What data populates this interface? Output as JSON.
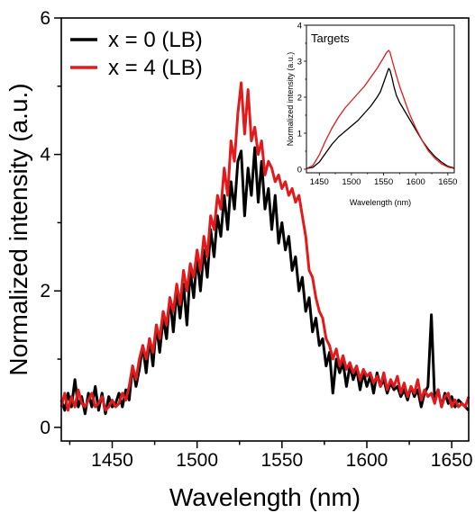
{
  "chart_data": [
    {
      "type": "line",
      "title": "",
      "xlabel": "Wavelength (nm)",
      "ylabel": "Normalized intensity (a.u.)",
      "xlim": [
        1420,
        1660
      ],
      "ylim": [
        -0.2,
        6.0
      ],
      "x_ticks": [
        1450,
        1500,
        1550,
        1600,
        1650
      ],
      "y_ticks": [
        0,
        2,
        4,
        6
      ],
      "grid": false,
      "legend_position": "top-left",
      "series": [
        {
          "name": "x = 0 (LB)",
          "color": "#000000",
          "x": [
            1420,
            1422,
            1424,
            1426,
            1428,
            1430,
            1432,
            1434,
            1436,
            1438,
            1440,
            1442,
            1444,
            1446,
            1448,
            1450,
            1452,
            1454,
            1456,
            1458,
            1460,
            1462,
            1464,
            1466,
            1468,
            1470,
            1472,
            1474,
            1476,
            1478,
            1480,
            1482,
            1484,
            1486,
            1488,
            1490,
            1492,
            1494,
            1496,
            1498,
            1500,
            1502,
            1504,
            1506,
            1508,
            1510,
            1512,
            1514,
            1516,
            1518,
            1520,
            1522,
            1524,
            1526,
            1528,
            1530,
            1532,
            1534,
            1536,
            1538,
            1540,
            1542,
            1544,
            1546,
            1548,
            1550,
            1552,
            1554,
            1556,
            1558,
            1560,
            1562,
            1564,
            1566,
            1568,
            1570,
            1572,
            1574,
            1576,
            1578,
            1580,
            1582,
            1584,
            1586,
            1588,
            1590,
            1592,
            1594,
            1596,
            1598,
            1600,
            1602,
            1604,
            1606,
            1608,
            1610,
            1612,
            1614,
            1616,
            1618,
            1620,
            1622,
            1624,
            1626,
            1628,
            1630,
            1632,
            1634,
            1636,
            1638,
            1640,
            1642,
            1644,
            1646,
            1648,
            1650,
            1652,
            1654,
            1656,
            1658,
            1660
          ],
          "y": [
            0.4,
            0.25,
            0.5,
            0.3,
            0.7,
            0.3,
            0.45,
            0.2,
            0.5,
            0.3,
            0.6,
            0.25,
            0.5,
            0.2,
            0.45,
            0.3,
            0.35,
            0.5,
            0.3,
            0.55,
            0.4,
            0.9,
            0.6,
            0.85,
            1.2,
            0.8,
            1.3,
            0.9,
            1.5,
            1.1,
            1.6,
            1.3,
            1.9,
            1.4,
            2.0,
            1.6,
            2.1,
            1.5,
            2.3,
            1.9,
            2.5,
            2.0,
            2.6,
            2.2,
            2.9,
            2.5,
            3.1,
            2.8,
            3.4,
            2.9,
            3.6,
            3.2,
            3.9,
            4.05,
            3.1,
            3.8,
            3.4,
            4.1,
            3.3,
            3.9,
            3.2,
            3.5,
            2.9,
            3.4,
            2.7,
            3.0,
            2.6,
            2.8,
            2.3,
            2.5,
            2.0,
            2.2,
            1.7,
            1.9,
            1.4,
            1.6,
            1.2,
            1.3,
            0.9,
            1.1,
            0.5,
            1.0,
            0.8,
            0.95,
            0.6,
            0.9,
            0.7,
            0.85,
            0.55,
            0.8,
            0.6,
            0.75,
            0.5,
            0.8,
            0.6,
            0.7,
            0.5,
            0.65,
            0.55,
            0.6,
            0.45,
            0.55,
            0.4,
            0.6,
            0.45,
            0.55,
            0.3,
            0.5,
            0.6,
            1.65,
            0.4,
            0.55,
            0.3,
            0.5,
            0.35,
            0.45,
            0.3,
            0.4,
            0.35,
            0.3,
            0.25
          ]
        },
        {
          "name": "x = 4 (LB)",
          "color": "#e31a1c",
          "x": [
            1420,
            1422,
            1424,
            1426,
            1428,
            1430,
            1432,
            1434,
            1436,
            1438,
            1440,
            1442,
            1444,
            1446,
            1448,
            1450,
            1452,
            1454,
            1456,
            1458,
            1460,
            1462,
            1464,
            1466,
            1468,
            1470,
            1472,
            1474,
            1476,
            1478,
            1480,
            1482,
            1484,
            1486,
            1488,
            1490,
            1492,
            1494,
            1496,
            1498,
            1500,
            1502,
            1504,
            1506,
            1508,
            1510,
            1512,
            1514,
            1516,
            1518,
            1520,
            1522,
            1524,
            1526,
            1528,
            1530,
            1532,
            1534,
            1536,
            1538,
            1540,
            1542,
            1544,
            1546,
            1548,
            1550,
            1552,
            1554,
            1556,
            1558,
            1560,
            1562,
            1564,
            1566,
            1568,
            1570,
            1572,
            1574,
            1576,
            1578,
            1580,
            1582,
            1584,
            1586,
            1588,
            1590,
            1592,
            1594,
            1596,
            1598,
            1600,
            1602,
            1604,
            1606,
            1608,
            1610,
            1612,
            1614,
            1616,
            1618,
            1620,
            1622,
            1624,
            1626,
            1628,
            1630,
            1632,
            1634,
            1636,
            1638,
            1640,
            1642,
            1644,
            1646,
            1648,
            1650,
            1652,
            1654,
            1656,
            1658,
            1660
          ],
          "y": [
            0.3,
            0.5,
            0.25,
            0.45,
            0.3,
            0.55,
            0.35,
            0.3,
            0.4,
            0.5,
            0.3,
            0.35,
            0.45,
            0.25,
            0.3,
            0.4,
            0.3,
            0.35,
            0.5,
            0.4,
            0.6,
            0.9,
            0.7,
            1.0,
            1.2,
            1.0,
            1.3,
            1.1,
            1.5,
            1.3,
            1.7,
            1.5,
            1.9,
            1.7,
            2.1,
            1.8,
            2.3,
            2.0,
            2.4,
            2.2,
            2.6,
            2.3,
            2.8,
            2.5,
            3.1,
            2.9,
            3.4,
            3.2,
            3.8,
            3.4,
            4.2,
            3.9,
            4.6,
            5.05,
            4.3,
            4.95,
            4.2,
            4.4,
            4.0,
            4.2,
            3.7,
            3.9,
            3.8,
            3.6,
            3.7,
            3.5,
            3.6,
            3.4,
            3.5,
            3.3,
            3.4,
            3.1,
            2.8,
            2.3,
            2.2,
            1.9,
            1.7,
            1.6,
            1.3,
            1.2,
            1.0,
            1.15,
            0.9,
            1.05,
            0.85,
            0.95,
            0.8,
            0.9,
            0.7,
            0.85,
            0.75,
            0.8,
            0.65,
            0.75,
            0.6,
            0.8,
            0.55,
            0.7,
            0.6,
            0.75,
            0.5,
            0.65,
            0.45,
            0.6,
            0.5,
            0.7,
            0.4,
            0.55,
            0.45,
            0.5,
            0.35,
            0.55,
            0.3,
            0.45,
            0.5,
            0.3,
            0.4,
            0.3,
            0.35,
            0.3,
            0.45
          ]
        }
      ]
    },
    {
      "type": "line",
      "title": "Targets",
      "xlabel": "Wavelength (nm)",
      "ylabel": "Normalized intensity (a.u.)",
      "xlim": [
        1430,
        1660
      ],
      "ylim": [
        -0.1,
        4
      ],
      "x_ticks": [
        1450,
        1500,
        1550,
        1600,
        1650
      ],
      "y_ticks": [
        0,
        1,
        2,
        3,
        4
      ],
      "grid": false,
      "series": [
        {
          "color": "#000000",
          "x": [
            1430,
            1440,
            1450,
            1460,
            1470,
            1480,
            1490,
            1500,
            1510,
            1520,
            1530,
            1540,
            1545,
            1550,
            1555,
            1558,
            1560,
            1563,
            1566,
            1570,
            1575,
            1580,
            1585,
            1590,
            1600,
            1610,
            1620,
            1630,
            1640,
            1650,
            1660
          ],
          "y": [
            0.02,
            0.05,
            0.2,
            0.45,
            0.7,
            0.9,
            1.05,
            1.2,
            1.35,
            1.55,
            1.75,
            2.0,
            2.15,
            2.4,
            2.65,
            2.8,
            2.75,
            2.55,
            2.3,
            2.05,
            1.85,
            1.7,
            1.55,
            1.4,
            1.1,
            0.8,
            0.55,
            0.35,
            0.2,
            0.08,
            0.03
          ]
        },
        {
          "color": "#e31a1c",
          "x": [
            1430,
            1440,
            1450,
            1460,
            1470,
            1480,
            1490,
            1500,
            1510,
            1520,
            1530,
            1540,
            1545,
            1550,
            1555,
            1558,
            1560,
            1563,
            1566,
            1570,
            1575,
            1580,
            1585,
            1590,
            1600,
            1610,
            1620,
            1630,
            1640,
            1650,
            1660
          ],
          "y": [
            0.02,
            0.1,
            0.4,
            0.8,
            1.15,
            1.45,
            1.7,
            1.9,
            2.1,
            2.3,
            2.55,
            2.8,
            2.95,
            3.1,
            3.25,
            3.3,
            3.25,
            3.05,
            2.85,
            2.6,
            2.3,
            2.05,
            1.8,
            1.55,
            1.15,
            0.8,
            0.5,
            0.3,
            0.15,
            0.06,
            0.02
          ]
        }
      ]
    }
  ]
}
